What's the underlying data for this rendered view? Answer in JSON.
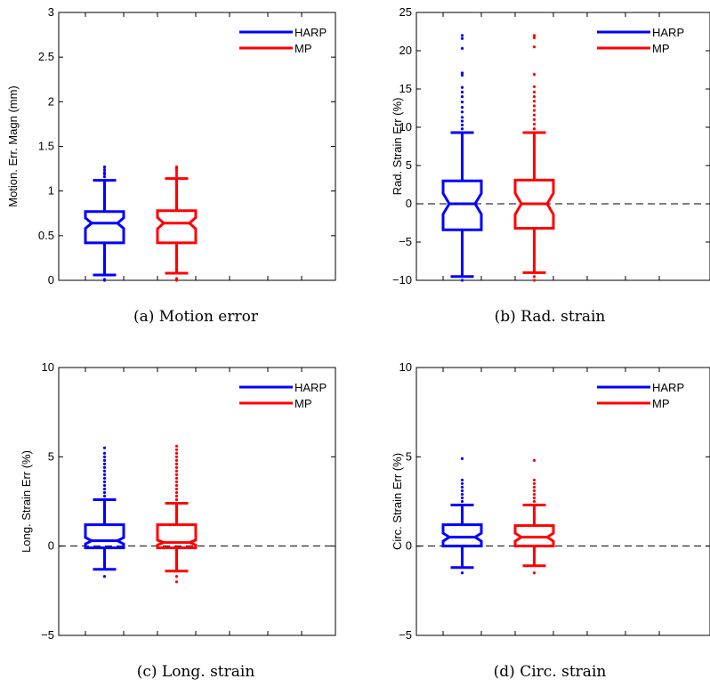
{
  "legend": {
    "harp": "HARP",
    "mp": "MP"
  },
  "colors": {
    "harp": "#0000ff",
    "mp": "#ff0000",
    "axis": "#000000"
  },
  "chart_data": [
    {
      "type": "box",
      "caption": "(a) Motion error",
      "ylabel": "Motion. Err. Magn (mm)",
      "ylim": [
        0,
        3
      ],
      "yticks": [
        0,
        0.5,
        1,
        1.5,
        2,
        2.5,
        3
      ],
      "ytick_labels": [
        "0",
        "0.5",
        "1",
        "1.5",
        "2",
        "2.5",
        "3"
      ],
      "zero_line": false,
      "series": [
        {
          "name": "HARP",
          "whisker_low": 0.06,
          "q1": 0.42,
          "median": 0.64,
          "q3": 0.77,
          "whisker_high": 1.12,
          "outliers": [
            0.0,
            0.01,
            1.16,
            1.19,
            1.21,
            1.24,
            1.27
          ]
        },
        {
          "name": "MP",
          "whisker_low": 0.08,
          "q1": 0.42,
          "median": 0.64,
          "q3": 0.78,
          "whisker_high": 1.14,
          "outliers": [
            0.0,
            0.01,
            0.02,
            1.17,
            1.2,
            1.23,
            1.25,
            1.27
          ]
        }
      ]
    },
    {
      "type": "box",
      "caption": "(b) Rad. strain",
      "ylabel": "Rad. Strain Err (%)",
      "ylim": [
        -10,
        25
      ],
      "yticks": [
        -10,
        -5,
        0,
        5,
        10,
        15,
        20,
        25
      ],
      "ytick_labels": [
        "−10",
        "−5",
        "0",
        "5",
        "10",
        "15",
        "20",
        "25"
      ],
      "zero_line": true,
      "series": [
        {
          "name": "HARP",
          "whisker_low": -9.5,
          "q1": -3.4,
          "median": 0,
          "q3": 3.0,
          "whisker_high": 9.3,
          "outliers": [
            -10,
            9.8,
            10.3,
            10.8,
            11.3,
            12,
            12.6,
            13.3,
            14,
            14.6,
            15.2,
            16.8,
            17.1,
            20.3,
            21.6,
            22
          ]
        },
        {
          "name": "MP",
          "whisker_low": -9.0,
          "q1": -3.2,
          "median": 0,
          "q3": 3.1,
          "whisker_high": 9.3,
          "outliers": [
            -9.5,
            -10,
            9.8,
            10.4,
            11,
            11.6,
            12.2,
            12.8,
            13.4,
            14,
            14.6,
            15.3,
            16.9,
            20.5,
            21.7,
            22
          ]
        }
      ]
    },
    {
      "type": "box",
      "caption": "(c) Long. strain",
      "ylabel": "Long. Strain Err (%)",
      "ylim": [
        -5,
        10
      ],
      "yticks": [
        -5,
        0,
        5,
        10
      ],
      "ytick_labels": [
        "−5",
        "0",
        "5",
        "10"
      ],
      "zero_line": true,
      "series": [
        {
          "name": "HARP",
          "whisker_low": -1.3,
          "q1": -0.1,
          "median": 0.3,
          "q3": 1.2,
          "whisker_high": 2.6,
          "outliers": [
            -1.7,
            2.8,
            3.0,
            3.2,
            3.4,
            3.6,
            3.8,
            4.0,
            4.2,
            4.4,
            4.6,
            4.8,
            5.0,
            5.2,
            5.5
          ]
        },
        {
          "name": "MP",
          "whisker_low": -1.4,
          "q1": -0.1,
          "median": 0.2,
          "q3": 1.2,
          "whisker_high": 2.4,
          "outliers": [
            -1.7,
            -2.0,
            2.6,
            2.8,
            3.0,
            3.2,
            3.4,
            3.6,
            3.8,
            4.0,
            4.2,
            4.4,
            4.6,
            4.8,
            5.0,
            5.2,
            5.4,
            5.6
          ]
        }
      ]
    },
    {
      "type": "box",
      "caption": "(d) Circ. strain",
      "ylabel": "Circ. Strain Err (%)",
      "ylim": [
        -5,
        10
      ],
      "yticks": [
        -5,
        0,
        5,
        10
      ],
      "ytick_labels": [
        "−5",
        "0",
        "5",
        "10"
      ],
      "zero_line": true,
      "series": [
        {
          "name": "HARP",
          "whisker_low": -1.2,
          "q1": 0.0,
          "median": 0.5,
          "q3": 1.2,
          "whisker_high": 2.3,
          "outliers": [
            -1.5,
            2.5,
            2.7,
            2.9,
            3.1,
            3.3,
            3.5,
            3.7,
            4.9
          ]
        },
        {
          "name": "MP",
          "whisker_low": -1.1,
          "q1": 0.0,
          "median": 0.5,
          "q3": 1.15,
          "whisker_high": 2.3,
          "outliers": [
            -1.5,
            2.5,
            2.7,
            2.9,
            3.1,
            3.3,
            3.5,
            3.7,
            4.8
          ]
        }
      ]
    }
  ]
}
